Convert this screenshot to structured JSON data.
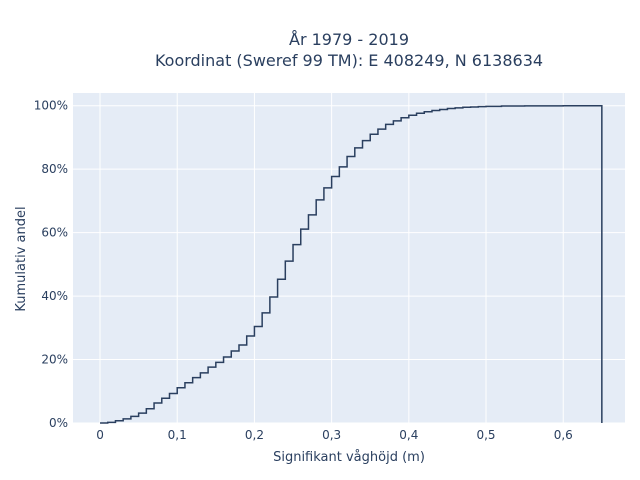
{
  "chart_data": {
    "type": "line",
    "subtype": "empirical cumulative distribution (step)",
    "title_line1": "År 1979 - 2019",
    "title_line2": "Koordinat (Sweref 99 TM): E 408249, N 6138634",
    "xlabel": "Signifikant våghöjd (m)",
    "ylabel": "Kumulativ andel",
    "xlim": [
      -0.035,
      0.68
    ],
    "ylim": [
      0,
      1.04
    ],
    "x_ticks": [
      {
        "value": 0,
        "label": "0"
      },
      {
        "value": 0.1,
        "label": "0,1"
      },
      {
        "value": 0.2,
        "label": "0,2"
      },
      {
        "value": 0.3,
        "label": "0,3"
      },
      {
        "value": 0.4,
        "label": "0,4"
      },
      {
        "value": 0.5,
        "label": "0,5"
      },
      {
        "value": 0.6,
        "label": "0,6"
      }
    ],
    "y_ticks": [
      {
        "value": 0,
        "label": "0%"
      },
      {
        "value": 0.2,
        "label": "20%"
      },
      {
        "value": 0.4,
        "label": "40%"
      },
      {
        "value": 0.6,
        "label": "60%"
      },
      {
        "value": 0.8,
        "label": "80%"
      },
      {
        "value": 1.0,
        "label": "100%"
      }
    ],
    "grid": true,
    "colors": {
      "background": "#e5ecf6",
      "grid": "#ffffff",
      "line": "#2a3f5f"
    },
    "series": [
      {
        "x": [
          0,
          0.01,
          0.02,
          0.03,
          0.04,
          0.05,
          0.06,
          0.07,
          0.08,
          0.09,
          0.1,
          0.11,
          0.12,
          0.13,
          0.14,
          0.15,
          0.16,
          0.17,
          0.18,
          0.19,
          0.2,
          0.21,
          0.22,
          0.23,
          0.24,
          0.25,
          0.26,
          0.27,
          0.28,
          0.29,
          0.3,
          0.31,
          0.32,
          0.33,
          0.34,
          0.35,
          0.36,
          0.37,
          0.38,
          0.39,
          0.4,
          0.41,
          0.42,
          0.43,
          0.44,
          0.45,
          0.46,
          0.47,
          0.48,
          0.49,
          0.5,
          0.52,
          0.55,
          0.6,
          0.65
        ],
        "y": [
          0.0,
          0.002,
          0.007,
          0.013,
          0.021,
          0.031,
          0.045,
          0.063,
          0.078,
          0.093,
          0.111,
          0.127,
          0.143,
          0.158,
          0.176,
          0.191,
          0.208,
          0.227,
          0.246,
          0.274,
          0.304,
          0.347,
          0.397,
          0.453,
          0.51,
          0.562,
          0.611,
          0.656,
          0.703,
          0.741,
          0.777,
          0.807,
          0.84,
          0.867,
          0.89,
          0.91,
          0.926,
          0.941,
          0.952,
          0.962,
          0.97,
          0.976,
          0.981,
          0.985,
          0.988,
          0.991,
          0.993,
          0.995,
          0.996,
          0.997,
          0.998,
          0.999,
          0.9995,
          1.0,
          1.0
        ]
      }
    ]
  }
}
